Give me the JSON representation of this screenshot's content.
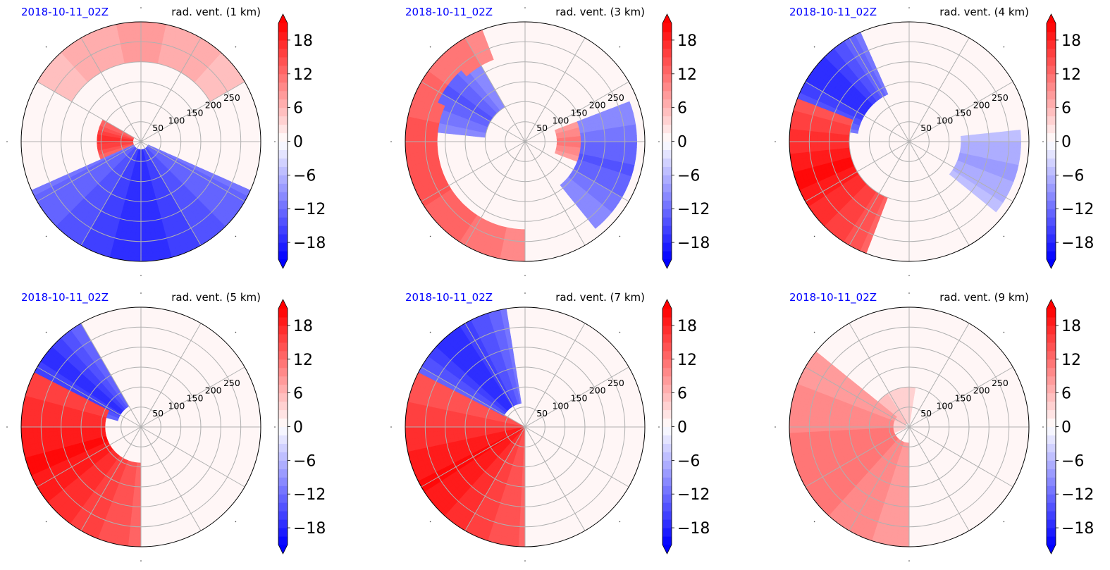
{
  "figure": {
    "colorbar": {
      "cmap": "bwr",
      "vmin": -21,
      "vmax": 21,
      "level_step": 1.5,
      "extend": "both",
      "tick_labels": [
        "18",
        "12",
        "6",
        "0",
        "−6",
        "−12",
        "−18"
      ],
      "tick_values": [
        18,
        12,
        6,
        0,
        -6,
        -12,
        -18
      ]
    },
    "polar_axes": {
      "radial_ticks": [
        "50",
        "100",
        "150",
        "200",
        "250"
      ],
      "radial_tick_values": [
        50,
        100,
        150,
        200,
        250
      ],
      "rmax": 300,
      "angular_gridlines_deg": [
        0,
        30,
        60,
        90,
        120,
        150,
        180,
        210,
        240,
        270,
        300,
        330
      ],
      "grid": true
    }
  },
  "chart_data": [
    {
      "type": "heatmap",
      "projection": "polar",
      "date_label": "2018-10-11_02Z",
      "title": "rad. vent. (1 km)",
      "field_description_regions": [
        {
          "sign": "negative",
          "theta_deg": [
            205,
            335
          ],
          "r": [
            20,
            300
          ],
          "value": -18
        },
        {
          "sign": "positive",
          "theta_deg": [
            150,
            205
          ],
          "r": [
            20,
            110
          ],
          "value": 18
        },
        {
          "sign": "positive",
          "theta_deg": [
            30,
            150
          ],
          "r": [
            200,
            300
          ],
          "value": 8
        }
      ]
    },
    {
      "type": "heatmap",
      "projection": "polar",
      "date_label": "2018-10-11_02Z",
      "title": "rad. vent. (3 km)",
      "field_description_regions": [
        {
          "sign": "positive",
          "theta_deg": [
            110,
            270
          ],
          "r": [
            220,
            300
          ],
          "value": 15
        },
        {
          "sign": "negative",
          "theta_deg": [
            120,
            175
          ],
          "r": [
            100,
            240
          ],
          "value": -14
        },
        {
          "sign": "negative",
          "theta_deg": [
            -50,
            20
          ],
          "r": [
            140,
            280
          ],
          "value": -14
        },
        {
          "sign": "positive",
          "theta_deg": [
            -20,
            20
          ],
          "r": [
            80,
            150
          ],
          "value": 12
        }
      ]
    },
    {
      "type": "heatmap",
      "projection": "polar",
      "date_label": "2018-10-11_02Z",
      "title": "rad. vent. (4 km)",
      "field_description_regions": [
        {
          "sign": "positive",
          "theta_deg": [
            150,
            250
          ],
          "r": [
            150,
            300
          ],
          "value": 20
        },
        {
          "sign": "negative",
          "theta_deg": [
            115,
            170
          ],
          "r": [
            130,
            300
          ],
          "value": -18
        },
        {
          "sign": "negative",
          "theta_deg": [
            -40,
            5
          ],
          "r": [
            130,
            280
          ],
          "value": -8
        }
      ]
    },
    {
      "type": "heatmap",
      "projection": "polar",
      "date_label": "2018-10-11_02Z",
      "title": "rad. vent. (5 km)",
      "field_description_regions": [
        {
          "sign": "positive",
          "theta_deg": [
            130,
            270
          ],
          "r": [
            90,
            300
          ],
          "value": 20
        },
        {
          "sign": "negative",
          "theta_deg": [
            120,
            165
          ],
          "r": [
            60,
            300
          ],
          "value": -18
        }
      ]
    },
    {
      "type": "heatmap",
      "projection": "polar",
      "date_label": "2018-10-11_02Z",
      "title": "rad. vent. (7 km)",
      "field_description_regions": [
        {
          "sign": "positive",
          "theta_deg": [
            150,
            270
          ],
          "r": [
            0,
            300
          ],
          "value": 20
        },
        {
          "sign": "negative",
          "theta_deg": [
            100,
            160
          ],
          "r": [
            60,
            300
          ],
          "value": -18
        }
      ]
    },
    {
      "type": "heatmap",
      "projection": "polar",
      "date_label": "2018-10-11_02Z",
      "title": "rad. vent. (9 km)",
      "field_description_regions": [
        {
          "sign": "positive",
          "theta_deg": [
            140,
            270
          ],
          "r": [
            40,
            300
          ],
          "value": 12
        },
        {
          "sign": "positive",
          "theta_deg": [
            80,
            200
          ],
          "r": [
            10,
            100
          ],
          "value": 5
        }
      ]
    }
  ]
}
